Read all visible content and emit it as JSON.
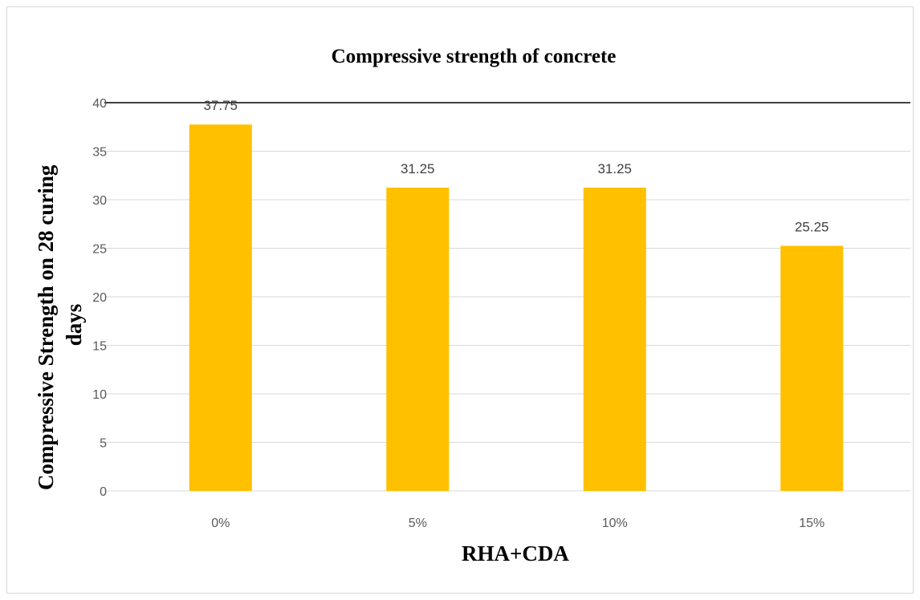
{
  "chart_data": {
    "type": "bar",
    "title": "Compressive strength of concrete",
    "xlabel": "RHA+CDA",
    "ylabel_lines": [
      "Compressive Strength on 28 curing",
      "days"
    ],
    "categories": [
      "0%",
      "5%",
      "10%",
      "15%"
    ],
    "values": [
      37.75,
      31.25,
      31.25,
      25.25
    ],
    "data_labels": [
      "37.75",
      "31.25",
      "31.25",
      "25.25"
    ],
    "ylim": [
      0,
      40
    ],
    "yticks": [
      0,
      5,
      10,
      15,
      20,
      25,
      30,
      35,
      40
    ],
    "grid": true,
    "legend": "none",
    "bar_color": "#ffc000"
  }
}
